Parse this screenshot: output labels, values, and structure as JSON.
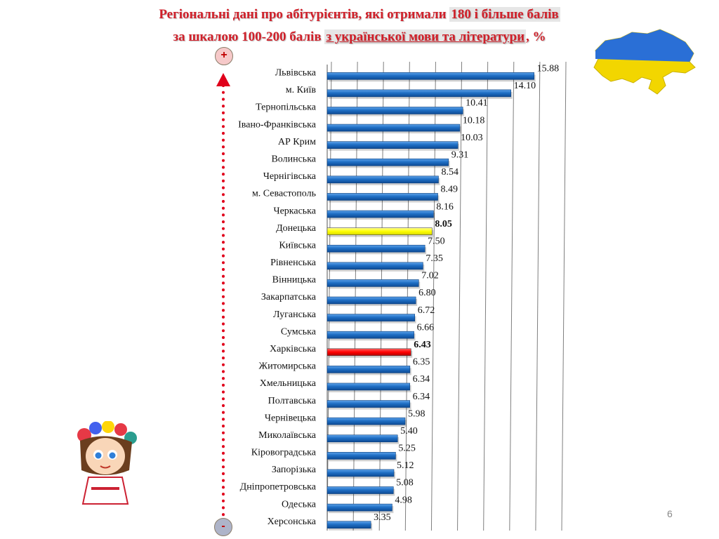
{
  "title": {
    "line1_prefix": "Регіональні дані про абітурієнтів, які отримали ",
    "line1_highlight": "180 і більше балів",
    "line2_prefix": "за шкалою 100-200 балів ",
    "line2_highlight": "з української мови та літератури",
    "line2_suffix": ", %"
  },
  "markers": {
    "top": "+",
    "bottom": "-"
  },
  "page_number": "6",
  "colors": {
    "bar_default": "#1f6fc5",
    "bar_donetsk": "#ffff00",
    "bar_kharkiv": "#ff0000",
    "arrow": "#e0001b",
    "title": "#d0202a"
  },
  "chart_data": {
    "type": "bar",
    "orientation": "horizontal",
    "categories": [
      "Львівська",
      "м. Київ",
      "Тернопільська",
      "Івано-Франківська",
      "АР Крим",
      "Волинська",
      "Чернігівська",
      "м. Севастополь",
      "Черкаська",
      "Донецька",
      "Київська",
      "Рівненська",
      "Вінницька",
      "Закарпатська",
      "Луганська",
      "Сумська",
      "Харківська",
      "Житомирська",
      "Хмельницька",
      "Полтавська",
      "Чернівецька",
      "Миколаївська",
      "Кіровоградська",
      "Запорізька",
      "Дніпропетровська",
      "Одеська",
      "Херсонська"
    ],
    "values": [
      15.88,
      14.1,
      10.41,
      10.18,
      10.03,
      9.31,
      8.54,
      8.49,
      8.16,
      8.05,
      7.5,
      7.35,
      7.02,
      6.8,
      6.72,
      6.66,
      6.43,
      6.35,
      6.34,
      6.34,
      5.98,
      5.4,
      5.25,
      5.12,
      5.08,
      4.98,
      3.35
    ],
    "value_labels": [
      "15.88",
      "14.10",
      "10.41",
      "10.18",
      "10.03",
      "9.31",
      "8.54",
      "8.49",
      "8.16",
      "8.05",
      "7.50",
      "7.35",
      "7.02",
      "6.80",
      "6.72",
      "6.66",
      "6.43",
      "6.35",
      "6.34",
      "6.34",
      "5.98",
      "5.40",
      "5.25",
      "5.12",
      "5.08",
      "4.98",
      "3.35"
    ],
    "highlighted": {
      "Донецька": "bar_donetsk",
      "Харківська": "bar_kharkiv"
    },
    "bold_value_labels": [
      "Донецька",
      "Харківська"
    ],
    "xlim": [
      0,
      18
    ],
    "grid": true,
    "legend": "none"
  }
}
